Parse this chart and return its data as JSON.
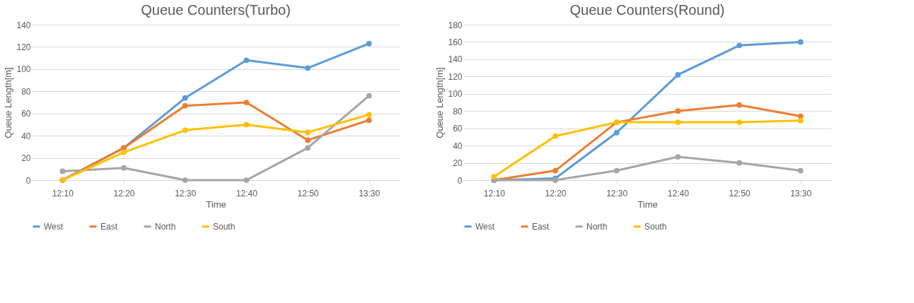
{
  "chart_data": [
    {
      "type": "line",
      "title": "Queue Counters(Turbo)",
      "xlabel": "Time",
      "ylabel": "Queue Length[m]",
      "categories": [
        "12:10",
        "12:20",
        "12:30",
        "12:40",
        "12:50",
        "13:30"
      ],
      "ylim": [
        0,
        140
      ],
      "yticks": [
        0,
        20,
        40,
        60,
        80,
        100,
        120,
        140
      ],
      "grid": "y",
      "legend": "bottom",
      "marker": "circle",
      "line_style": "solid",
      "series": [
        {
          "name": "West",
          "color": "#5b9bd5",
          "values": [
            0,
            29,
            74,
            108,
            101,
            123
          ]
        },
        {
          "name": "East",
          "color": "#ed7d31",
          "values": [
            0,
            29,
            67,
            70,
            36,
            54
          ]
        },
        {
          "name": "North",
          "color": "#a5a5a5",
          "values": [
            8,
            11,
            0,
            0,
            29,
            76
          ]
        },
        {
          "name": "South",
          "color": "#ffc000",
          "values": [
            0,
            25,
            45,
            50,
            43,
            59
          ]
        }
      ]
    },
    {
      "type": "line",
      "title": "Queue Counters(Round)",
      "xlabel": "Time",
      "ylabel": "Queue Length[m]",
      "categories": [
        "12:10",
        "12:20",
        "12:30",
        "12:40",
        "12:50",
        "13:30"
      ],
      "ylim": [
        0,
        180
      ],
      "yticks": [
        0,
        20,
        40,
        60,
        80,
        100,
        120,
        140,
        160,
        180
      ],
      "grid": "y",
      "legend": "bottom",
      "marker": "circle",
      "line_style": "solid",
      "series": [
        {
          "name": "West",
          "color": "#5b9bd5",
          "values": [
            0,
            2,
            55,
            122,
            156,
            160
          ]
        },
        {
          "name": "East",
          "color": "#ed7d31",
          "values": [
            0,
            11,
            67,
            80,
            87,
            74
          ]
        },
        {
          "name": "North",
          "color": "#a5a5a5",
          "values": [
            0,
            0,
            11,
            27,
            20,
            11
          ]
        },
        {
          "name": "South",
          "color": "#ffc000",
          "values": [
            4,
            51,
            67,
            67,
            67,
            69
          ]
        }
      ]
    }
  ]
}
